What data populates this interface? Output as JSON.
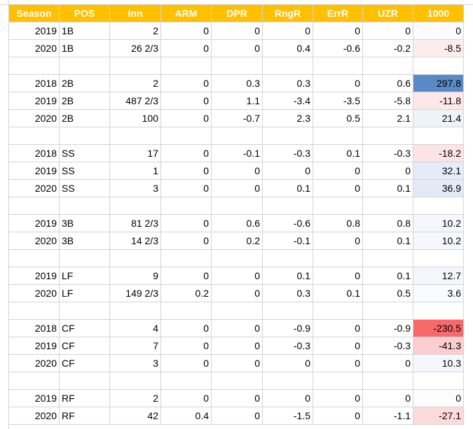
{
  "table": {
    "header": [
      "Season",
      "POS",
      "Inn",
      "ARM",
      "DPR",
      "RngR",
      "ErrR",
      "UZR",
      "1000"
    ],
    "header_color": "#ffc000",
    "rows": [
      [
        "2019",
        "1B",
        "2",
        "0",
        "0",
        "0",
        "0",
        "0",
        "0"
      ],
      [
        "2020",
        "1B",
        "26 2/3",
        "0",
        "0",
        "0.4",
        "-0.6",
        "-0.2",
        "-8.5"
      ],
      null,
      [
        "2018",
        "2B",
        "2",
        "0",
        "0.3",
        "0.3",
        "0",
        "0.6",
        "297.8"
      ],
      [
        "2019",
        "2B",
        "487 2/3",
        "0",
        "1.1",
        "-3.4",
        "-3.5",
        "-5.8",
        "-11.8"
      ],
      [
        "2020",
        "2B",
        "100",
        "0",
        "-0.7",
        "2.3",
        "0.5",
        "2.1",
        "21.4"
      ],
      null,
      [
        "2018",
        "SS",
        "17",
        "0",
        "-0.1",
        "-0.3",
        "0.1",
        "-0.3",
        "-18.2"
      ],
      [
        "2019",
        "SS",
        "1",
        "0",
        "0",
        "0",
        "0",
        "0",
        "32.1"
      ],
      [
        "2020",
        "SS",
        "3",
        "0",
        "0",
        "0.1",
        "0",
        "0.1",
        "36.9"
      ],
      null,
      [
        "2019",
        "3B",
        "81 2/3",
        "0",
        "0.6",
        "-0.6",
        "0.8",
        "0.8",
        "10.2"
      ],
      [
        "2020",
        "3B",
        "14 2/3",
        "0",
        "0.2",
        "-0.1",
        "0",
        "0.1",
        "10.2"
      ],
      null,
      [
        "2019",
        "LF",
        "9",
        "0",
        "0",
        "0.1",
        "0",
        "0.1",
        "12.7"
      ],
      [
        "2020",
        "LF",
        "149 2/3",
        "0.2",
        "0",
        "0.3",
        "0.1",
        "0.5",
        "3.6"
      ],
      null,
      [
        "2018",
        "CF",
        "4",
        "0",
        "0",
        "-0.9",
        "0",
        "-0.9",
        "-230.5"
      ],
      [
        "2019",
        "CF",
        "7",
        "0",
        "0",
        "-0.3",
        "0",
        "-0.3",
        "-41.3"
      ],
      [
        "2020",
        "CF",
        "3",
        "0",
        "0",
        "0",
        "0",
        "0",
        "10.3"
      ],
      null,
      [
        "2019",
        "RF",
        "2",
        "0",
        "0",
        "0",
        "0",
        "0",
        "0"
      ],
      [
        "2020",
        "RF",
        "42",
        "0.4",
        "0",
        "-1.5",
        "0",
        "-1.1",
        "-27.1"
      ]
    ],
    "heat_colors": [
      "#fcfcff",
      "#fdeced",
      null,
      "#5a8ac6",
      "#fce8ea",
      "#eef2f9",
      null,
      "#fce3e5",
      "#e6ecf7",
      "#e3eaf6",
      null,
      "#f6f7fc",
      "#f6f7fc",
      null,
      "#f4f6fb",
      "#fafbfe",
      null,
      "#f8696b",
      "#fbcfd1",
      "#f6f7fc",
      null,
      "#fcfcff",
      "#fcdadc"
    ]
  }
}
